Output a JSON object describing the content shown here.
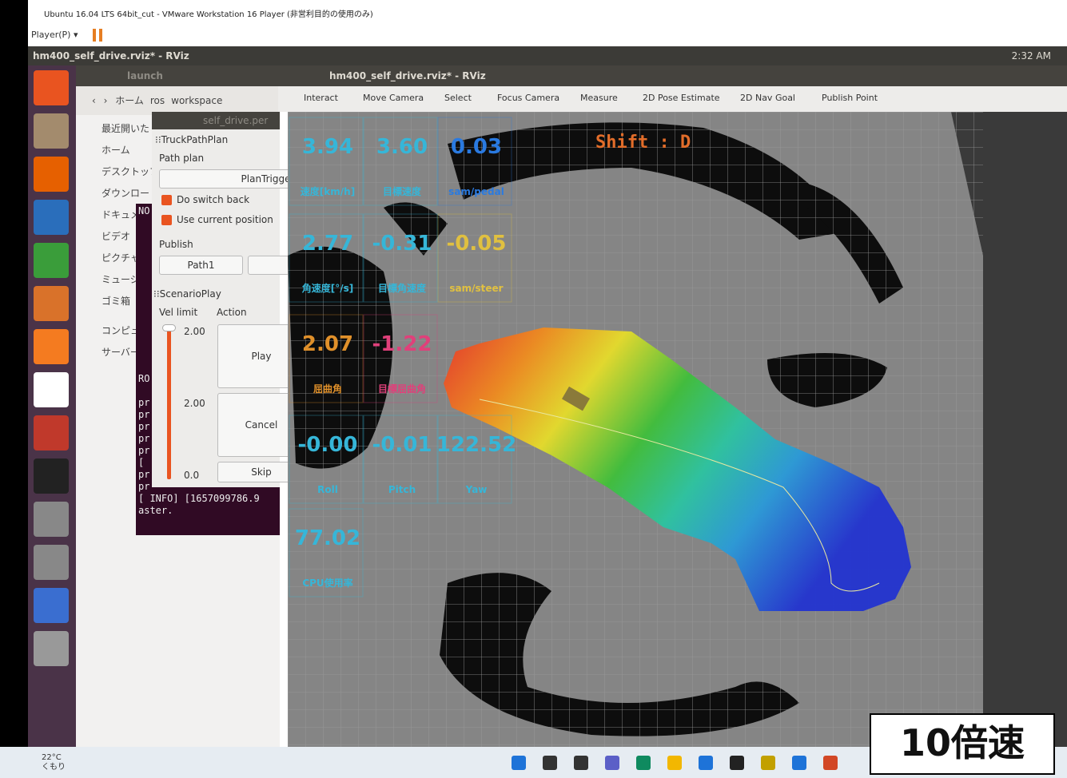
{
  "vmware": {
    "title": "Ubuntu 16.04 LTS 64bit_cut - VMware Workstation 16 Player (非営利目的の使用のみ)",
    "menu": "Player(P)"
  },
  "ubuntu": {
    "window_title": "hm400_self_drive.rviz* - RViz",
    "clock": "2:32 AM"
  },
  "file_manager": {
    "title": "launch",
    "path": [
      "ホーム",
      "ros",
      "workspace"
    ],
    "sidebar": [
      "最近開いた",
      "ホーム",
      "デスクトップ",
      "ダウンロード",
      "ドキュメント",
      "ビデオ",
      "ピクチャ",
      "ミュージック",
      "ゴミ箱",
      "コンピュータ",
      "サーバー"
    ]
  },
  "terminal": {
    "title": "self_drive.per",
    "lines": [
      "NO",
      "",
      "",
      "",
      "",
      "",
      "",
      "",
      "",
      "",
      "",
      "",
      "",
      "",
      "RO",
      "",
      "pr",
      "pr",
      "pr",
      "pr",
      "pr",
      "[",
      "pr",
      "pr",
      "[ INFO] [1657099786.9",
      "aster."
    ]
  },
  "panel": {
    "section": "TruckPathPlan",
    "path_plan": "Path plan",
    "plan_trigger": "PlanTrigger",
    "do_switch_back": "Do switch back",
    "use_current_position": "Use current position",
    "publish": "Publish",
    "path1": "Path1",
    "scenario": "ScenarioPlay",
    "vel_limit": "Vel limit",
    "action": "Action",
    "slider_labels": [
      "2.00",
      "2.00",
      "0.0"
    ],
    "play": "Play",
    "cancel": "Cancel",
    "skip": "Skip"
  },
  "rviz": {
    "title": "hm400_self_drive.rviz* - RViz",
    "tools": [
      "Interact",
      "Move Camera",
      "Select",
      "Focus Camera",
      "Measure",
      "2D Pose Estimate",
      "2D Nav Goal",
      "Publish Point"
    ],
    "shift": "Shift : D",
    "gauges": [
      {
        "value": "3.94",
        "label": "速度[km/h]"
      },
      {
        "value": "3.60",
        "label": "目標速度"
      },
      {
        "value": "0.03",
        "label": "sam/pedal"
      },
      {
        "value": "2.77",
        "label": "角速度[°/s]"
      },
      {
        "value": "-0.31",
        "label": "目標角速度"
      },
      {
        "value": "-0.05",
        "label": "sam/steer"
      },
      {
        "value": "2.07",
        "label": "屈曲角"
      },
      {
        "value": "-1.22",
        "label": "目標屈曲角"
      },
      {
        "value": "-0.00",
        "label": "Roll"
      },
      {
        "value": "-0.01",
        "label": "Pitch"
      },
      {
        "value": "122.52",
        "label": "Yaw"
      },
      {
        "value": "77.02",
        "label": "CPU使用率"
      }
    ]
  },
  "taskbar": {
    "temperature": "22°C",
    "weather": "くもり"
  },
  "badge": "10倍速"
}
